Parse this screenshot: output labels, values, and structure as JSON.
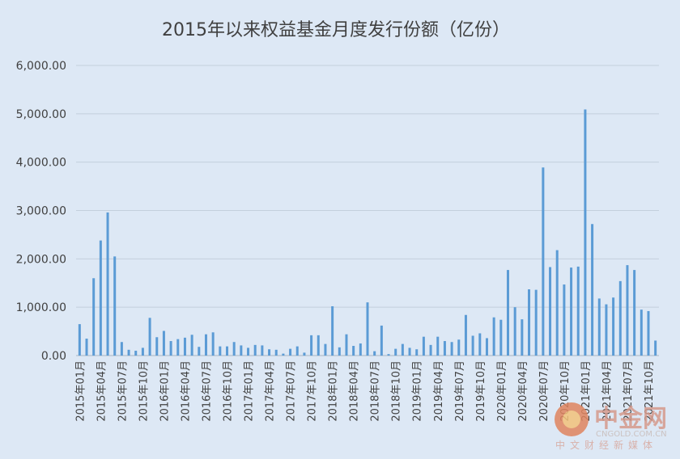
{
  "chart_data": {
    "type": "bar",
    "title": "2015年以来权益基金月度发行份额（亿份）",
    "xlabel": "",
    "ylabel": "",
    "ylim": [
      0,
      6000
    ],
    "y_ticks": [
      "0.00",
      "1,000.00",
      "2,000.00",
      "3,000.00",
      "4,000.00",
      "5,000.00",
      "6,000.00"
    ],
    "grid": true,
    "legend": "none",
    "bar_color": "#5b9bd5",
    "categories": [
      "2015年01月",
      "2015年02月",
      "2015年03月",
      "2015年04月",
      "2015年05月",
      "2015年06月",
      "2015年07月",
      "2015年08月",
      "2015年09月",
      "2015年10月",
      "2015年11月",
      "2015年12月",
      "2016年01月",
      "2016年02月",
      "2016年03月",
      "2016年04月",
      "2016年05月",
      "2016年06月",
      "2016年07月",
      "2016年08月",
      "2016年09月",
      "2016年10月",
      "2016年11月",
      "2016年12月",
      "2017年01月",
      "2017年02月",
      "2017年03月",
      "2017年04月",
      "2017年05月",
      "2017年06月",
      "2017年07月",
      "2017年08月",
      "2017年09月",
      "2017年10月",
      "2017年11月",
      "2017年12月",
      "2018年01月",
      "2018年02月",
      "2018年03月",
      "2018年04月",
      "2018年05月",
      "2018年06月",
      "2018年07月",
      "2018年08月",
      "2018年09月",
      "2018年10月",
      "2018年11月",
      "2018年12月",
      "2019年01月",
      "2019年02月",
      "2019年03月",
      "2019年04月",
      "2019年05月",
      "2019年06月",
      "2019年07月",
      "2019年08月",
      "2019年09月",
      "2019年10月",
      "2019年11月",
      "2019年12月",
      "2020年01月",
      "2020年02月",
      "2020年03月",
      "2020年04月",
      "2020年05月",
      "2020年06月",
      "2020年07月",
      "2020年08月",
      "2020年09月",
      "2020年10月",
      "2020年11月",
      "2020年12月",
      "2021年01月",
      "2021年02月",
      "2021年03月",
      "2021年04月",
      "2021年05月",
      "2021年06月",
      "2021年07月",
      "2021年08月",
      "2021年09月",
      "2021年10月",
      "2021年11月"
    ],
    "x_tick_labels": [
      "2015年01月",
      "2015年04月",
      "2015年07月",
      "2015年10月",
      "2016年01月",
      "2016年04月",
      "2016年07月",
      "2016年10月",
      "2017年01月",
      "2017年04月",
      "2017年07月",
      "2017年10月",
      "2018年01月",
      "2018年04月",
      "2018年07月",
      "2018年10月",
      "2019年01月",
      "2019年04月",
      "2019年07月",
      "2019年10月",
      "2020年01月",
      "2020年04月",
      "2020年07月",
      "2020年10月",
      "2021年01月",
      "2021年04月",
      "2021年07月",
      "2021年10月"
    ],
    "values": [
      650,
      350,
      1600,
      2380,
      2960,
      2050,
      280,
      120,
      100,
      160,
      780,
      380,
      510,
      300,
      340,
      370,
      430,
      180,
      440,
      480,
      190,
      190,
      280,
      210,
      160,
      220,
      210,
      130,
      120,
      40,
      140,
      190,
      60,
      420,
      420,
      240,
      1020,
      170,
      440,
      200,
      250,
      1100,
      90,
      620,
      30,
      140,
      240,
      160,
      130,
      390,
      220,
      390,
      300,
      280,
      330,
      840,
      410,
      460,
      360,
      790,
      740,
      1770,
      1000,
      750,
      1370,
      1360,
      3890,
      1830,
      2180,
      1470,
      1820,
      1840,
      5090,
      2720,
      1180,
      1060,
      1200,
      1540,
      1870,
      1770,
      950,
      920,
      310
    ]
  },
  "watermark": {
    "brand": "中金网",
    "url": "CNGOLD.COM.CN",
    "tagline": "中文财经新媒体"
  }
}
